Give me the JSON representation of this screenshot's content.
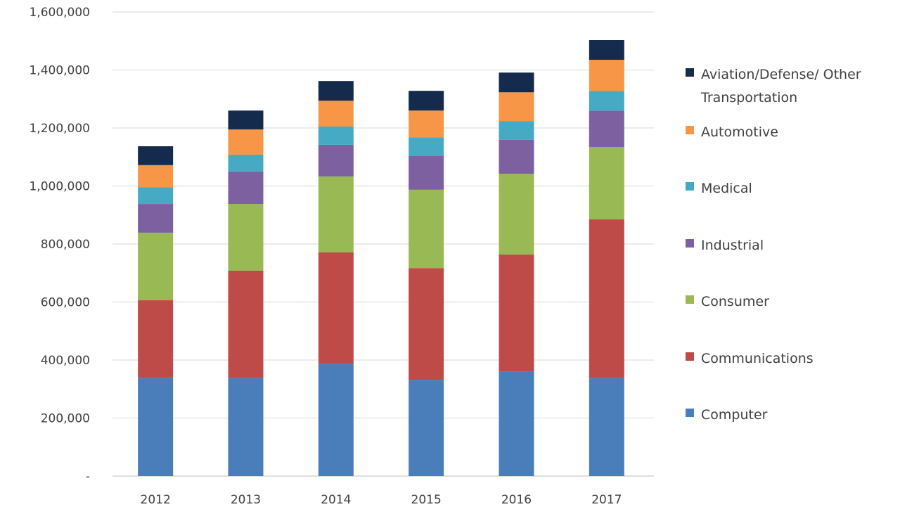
{
  "chart_data": {
    "type": "bar",
    "stacked": true,
    "title": "",
    "xlabel": "",
    "ylabel": "",
    "ylim": [
      0,
      1600000
    ],
    "yticks": [
      0,
      200000,
      400000,
      600000,
      800000,
      1000000,
      1200000,
      1400000,
      1600000
    ],
    "ytick_labels": [
      "-",
      "200,000",
      "400,000",
      "600,000",
      "800,000",
      "1,000,000",
      "1,200,000",
      "1,400,000",
      "1,600,000"
    ],
    "grid": true,
    "legend_position": "right",
    "categories": [
      "2012",
      "2013",
      "2014",
      "2015",
      "2016",
      "2017"
    ],
    "series": [
      {
        "name": "Computer",
        "color": "#4a7ebb",
        "values": [
          339000,
          339000,
          388000,
          332000,
          361000,
          339000
        ]
      },
      {
        "name": "Communications",
        "color": "#be4b48",
        "values": [
          267000,
          369000,
          383000,
          385000,
          403000,
          546000
        ]
      },
      {
        "name": "Consumer",
        "color": "#98b954",
        "values": [
          233000,
          230000,
          262000,
          270000,
          278000,
          249000
        ]
      },
      {
        "name": "Industrial",
        "color": "#7d60a0",
        "values": [
          99000,
          112000,
          109000,
          116000,
          117000,
          126000
        ]
      },
      {
        "name": "Medical",
        "color": "#46aac5",
        "values": [
          58000,
          58000,
          63000,
          65000,
          65000,
          68000
        ]
      },
      {
        "name": "Automotive",
        "color": "#f79646",
        "values": [
          76000,
          87000,
          89000,
          92000,
          99000,
          107000
        ]
      },
      {
        "name": "Aviation/Defense/ Other Transportation",
        "legend_lines": [
          "Aviation/Defense/ Other",
          "Transportation"
        ],
        "color": "#142b4d",
        "values": [
          65000,
          65000,
          68000,
          68000,
          68000,
          68000
        ]
      }
    ]
  }
}
